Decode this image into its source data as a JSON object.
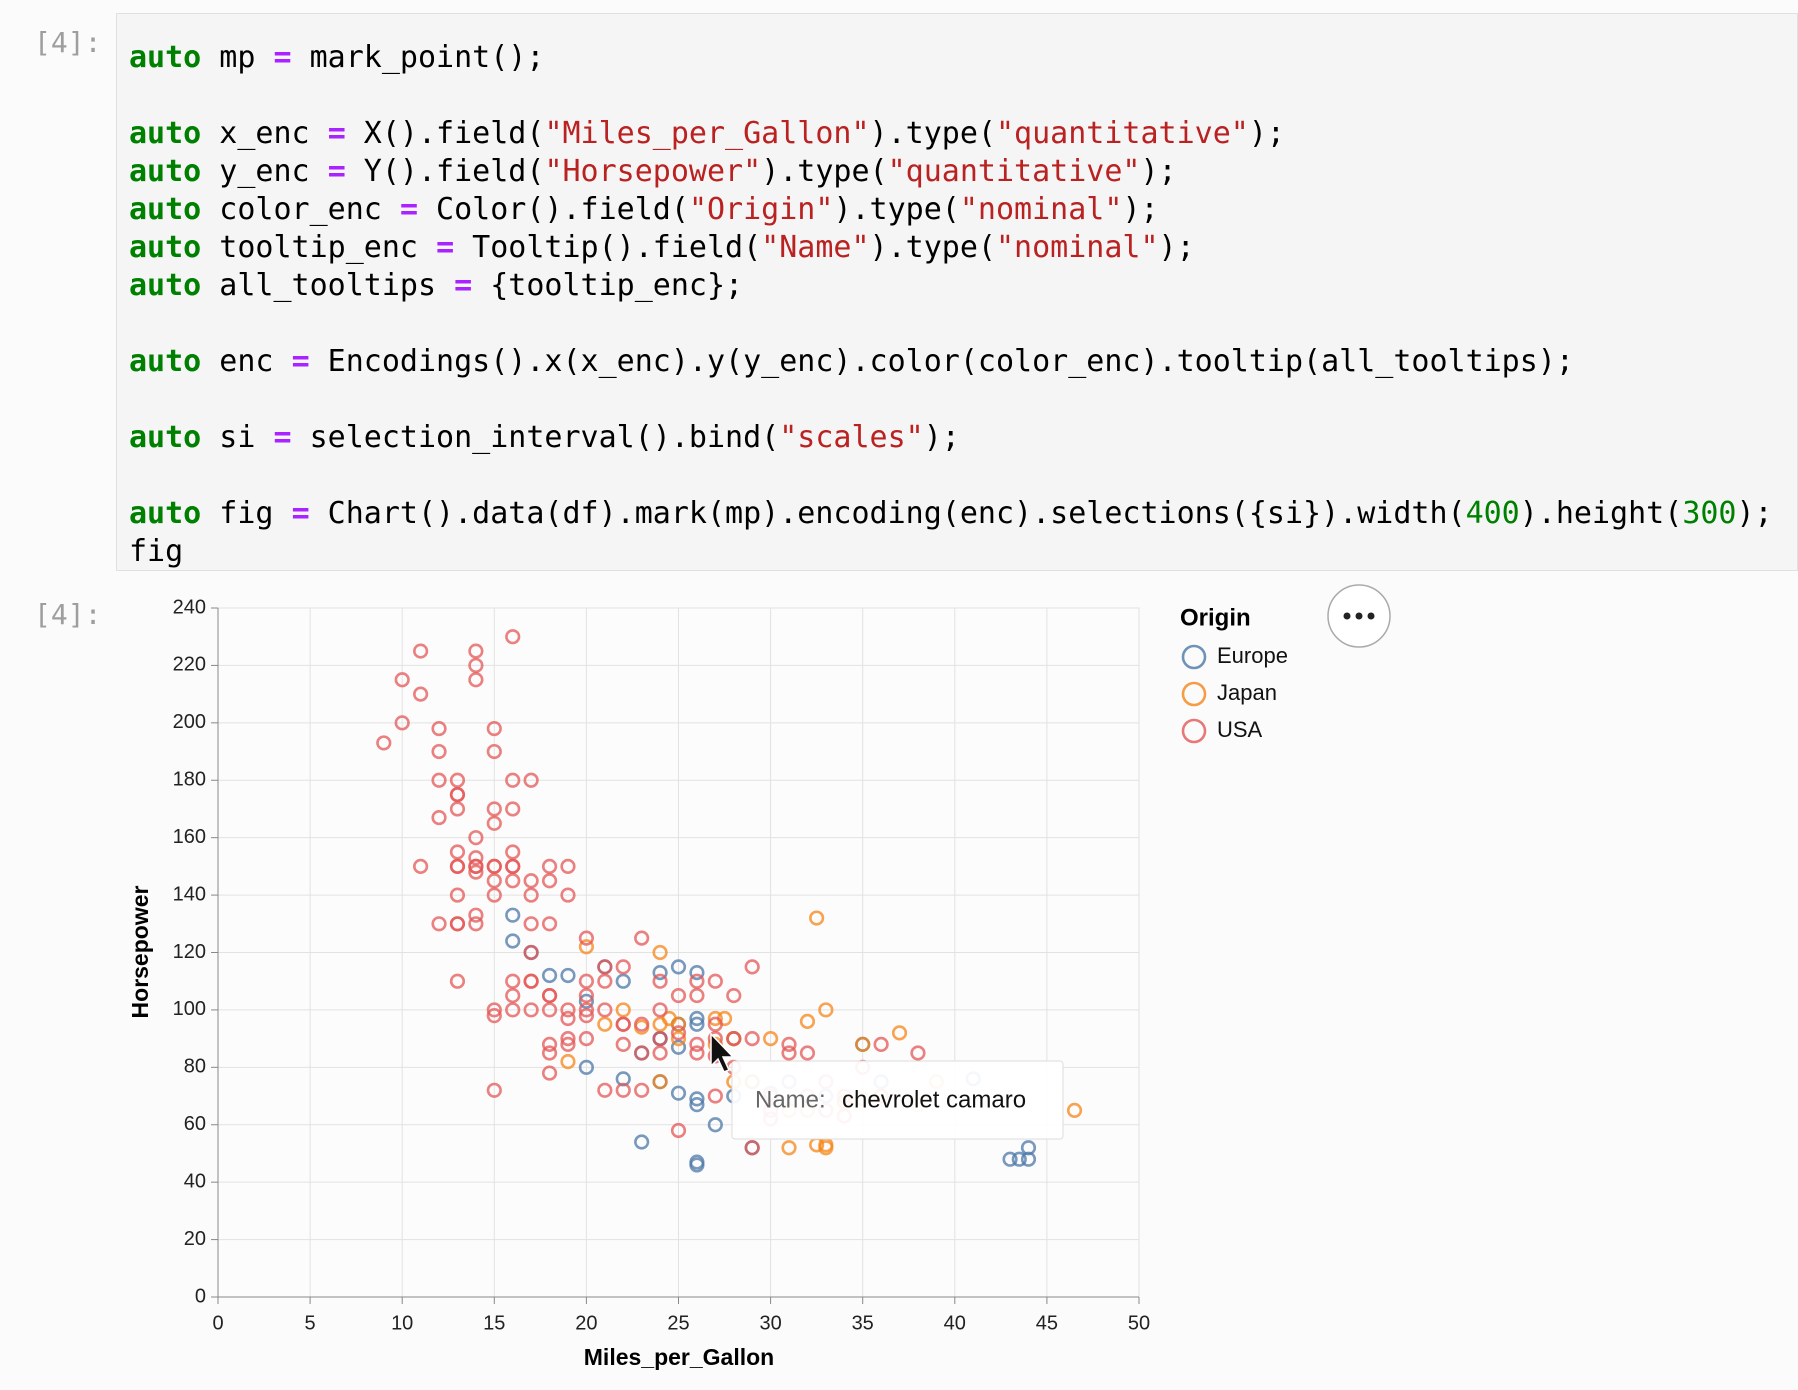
{
  "prompts": {
    "input": "[4]:",
    "output": "[4]:"
  },
  "code": {
    "lines": [
      [
        {
          "text": "auto",
          "color": "#008000",
          "bold": true
        },
        {
          "text": " mp "
        },
        {
          "text": "=",
          "color": "#aa22ff",
          "bold": true
        },
        {
          "text": " mark_point();"
        }
      ],
      [],
      [
        {
          "text": "auto",
          "color": "#008000",
          "bold": true
        },
        {
          "text": " x_enc "
        },
        {
          "text": "=",
          "color": "#aa22ff",
          "bold": true
        },
        {
          "text": " X().field("
        },
        {
          "text": "\"Miles_per_Gallon\"",
          "color": "#ba2121"
        },
        {
          "text": ").type("
        },
        {
          "text": "\"quantitative\"",
          "color": "#ba2121"
        },
        {
          "text": ");"
        }
      ],
      [
        {
          "text": "auto",
          "color": "#008000",
          "bold": true
        },
        {
          "text": " y_enc "
        },
        {
          "text": "=",
          "color": "#aa22ff",
          "bold": true
        },
        {
          "text": " Y().field("
        },
        {
          "text": "\"Horsepower\"",
          "color": "#ba2121"
        },
        {
          "text": ").type("
        },
        {
          "text": "\"quantitative\"",
          "color": "#ba2121"
        },
        {
          "text": ");"
        }
      ],
      [
        {
          "text": "auto",
          "color": "#008000",
          "bold": true
        },
        {
          "text": " color_enc "
        },
        {
          "text": "=",
          "color": "#aa22ff",
          "bold": true
        },
        {
          "text": " Color().field("
        },
        {
          "text": "\"Origin\"",
          "color": "#ba2121"
        },
        {
          "text": ").type("
        },
        {
          "text": "\"nominal\"",
          "color": "#ba2121"
        },
        {
          "text": ");"
        }
      ],
      [
        {
          "text": "auto",
          "color": "#008000",
          "bold": true
        },
        {
          "text": " tooltip_enc "
        },
        {
          "text": "=",
          "color": "#aa22ff",
          "bold": true
        },
        {
          "text": " Tooltip().field("
        },
        {
          "text": "\"Name\"",
          "color": "#ba2121"
        },
        {
          "text": ").type("
        },
        {
          "text": "\"nominal\"",
          "color": "#ba2121"
        },
        {
          "text": ");"
        }
      ],
      [
        {
          "text": "auto",
          "color": "#008000",
          "bold": true
        },
        {
          "text": " all_tooltips "
        },
        {
          "text": "=",
          "color": "#aa22ff",
          "bold": true
        },
        {
          "text": " {tooltip_enc};"
        }
      ],
      [],
      [
        {
          "text": "auto",
          "color": "#008000",
          "bold": true
        },
        {
          "text": " enc "
        },
        {
          "text": "=",
          "color": "#aa22ff",
          "bold": true
        },
        {
          "text": " Encodings().x(x_enc).y(y_enc).color(color_enc).tooltip(all_tooltips);"
        }
      ],
      [],
      [
        {
          "text": "auto",
          "color": "#008000",
          "bold": true
        },
        {
          "text": " si "
        },
        {
          "text": "=",
          "color": "#aa22ff",
          "bold": true
        },
        {
          "text": " selection_interval().bind("
        },
        {
          "text": "\"scales\"",
          "color": "#ba2121"
        },
        {
          "text": ");"
        }
      ],
      [],
      [
        {
          "text": "auto",
          "color": "#008000",
          "bold": true
        },
        {
          "text": " fig "
        },
        {
          "text": "=",
          "color": "#aa22ff",
          "bold": true
        },
        {
          "text": " Chart().data(df).mark(mp).encoding(enc).selections({si}).width("
        },
        {
          "text": "400",
          "color": "#008000"
        },
        {
          "text": ").height("
        },
        {
          "text": "300",
          "color": "#008000"
        },
        {
          "text": ");"
        }
      ],
      [
        {
          "text": "fig"
        }
      ]
    ]
  },
  "chart_data": {
    "type": "scatter",
    "x_label": "Miles_per_Gallon",
    "y_label": "Horsepower",
    "xlim": [
      0,
      50
    ],
    "ylim": [
      0,
      240
    ],
    "xticks": [
      0,
      5,
      10,
      15,
      20,
      25,
      30,
      35,
      40,
      45,
      50
    ],
    "yticks": [
      0,
      20,
      40,
      60,
      80,
      100,
      120,
      140,
      160,
      180,
      200,
      220,
      240
    ],
    "grid": true,
    "legend_title": "Origin",
    "legend_position": "right",
    "tooltip": {
      "label": "Name:",
      "value": "chevrolet camaro"
    },
    "series": [
      {
        "name": "Europe",
        "color": "#4c78a8",
        "x": [
          26,
          26,
          25,
          24,
          25,
          24,
          24,
          26,
          28,
          29,
          26,
          22,
          23,
          24,
          25,
          26,
          27,
          29,
          31,
          35,
          43,
          44,
          44,
          43.5,
          41,
          36,
          20,
          19,
          18,
          17,
          16,
          16,
          21,
          22,
          25,
          26,
          23,
          20,
          30,
          33,
          26,
          28
        ],
        "y": [
          46,
          47,
          87,
          90,
          95,
          113,
          90,
          95,
          90,
          52,
          97,
          76,
          54,
          75,
          71,
          67,
          60,
          75,
          75,
          88,
          48,
          48,
          52,
          48,
          76,
          75,
          103,
          112,
          112,
          120,
          124,
          133,
          115,
          110,
          115,
          113,
          85,
          80,
          71,
          70,
          69,
          70
        ]
      },
      {
        "name": "Japan",
        "color": "#f58518",
        "x": [
          24,
          27,
          27,
          25,
          31,
          35,
          32,
          33,
          32,
          32.5,
          37,
          39,
          46.5,
          31,
          33,
          32.5,
          27.5,
          28,
          30,
          34,
          36,
          38,
          35,
          24,
          23,
          22,
          20,
          19,
          21,
          24,
          25,
          28,
          29,
          33,
          34,
          24.5
        ],
        "y": [
          95,
          97,
          88,
          95,
          65,
          69,
          65,
          100,
          96,
          132,
          92,
          75,
          65,
          52,
          52,
          53,
          97,
          90,
          90,
          68,
          70,
          67,
          88,
          120,
          94,
          100,
          122,
          82,
          95,
          75,
          90,
          75,
          75,
          53,
          68,
          97
        ]
      },
      {
        "name": "USA",
        "color": "#e45756",
        "x": [
          18,
          15,
          18,
          16,
          17,
          15,
          14,
          14,
          14,
          15,
          15,
          14,
          15,
          16,
          22,
          18,
          21,
          10,
          10,
          11,
          9,
          13,
          13,
          12,
          13,
          14,
          13,
          12,
          13,
          16,
          19,
          18,
          17,
          19,
          18,
          16,
          15,
          16,
          17,
          20,
          20,
          21,
          13,
          14,
          15,
          14,
          12,
          13,
          13,
          11,
          12,
          16,
          17,
          16,
          11,
          14,
          15,
          15,
          13,
          22,
          18,
          21,
          20,
          17,
          18,
          19,
          22,
          23,
          16,
          17,
          13,
          16,
          17,
          14,
          12,
          13,
          15,
          18,
          19,
          24,
          26,
          25,
          27,
          29,
          30,
          28,
          31,
          33,
          36,
          35,
          38,
          32,
          27,
          34,
          25,
          24,
          26,
          29,
          28,
          27,
          23,
          23,
          20,
          20,
          19,
          17,
          18,
          19,
          16,
          15,
          14,
          26,
          24,
          23,
          22,
          30,
          30,
          29,
          25,
          27,
          34,
          33,
          36,
          20,
          21,
          22,
          24,
          26,
          27,
          28,
          31,
          32
        ],
        "y": [
          130,
          165,
          150,
          150,
          140,
          198,
          220,
          215,
          225,
          190,
          170,
          160,
          150,
          230,
          95,
          105,
          100,
          215,
          200,
          210,
          193,
          170,
          175,
          180,
          150,
          150,
          140,
          167,
          175,
          180,
          100,
          88,
          100,
          88,
          100,
          105,
          100,
          100,
          110,
          110,
          100,
          110,
          150,
          153,
          150,
          133,
          198,
          155,
          180,
          225,
          190,
          170,
          180,
          155,
          150,
          130,
          140,
          72,
          130,
          72,
          85,
          72,
          90,
          110,
          105,
          90,
          95,
          72,
          110,
          120,
          130,
          145,
          145,
          150,
          130,
          110,
          98,
          78,
          97,
          85,
          88,
          92,
          90,
          90,
          70,
          80,
          85,
          75,
          88,
          80,
          85,
          85,
          84,
          70,
          105,
          110,
          105,
          115,
          105,
          110,
          125,
          95,
          105,
          125,
          140,
          130,
          145,
          150,
          150,
          145,
          148,
          85,
          90,
          85,
          88,
          62,
          65,
          52,
          58,
          70,
          63,
          65,
          70,
          98,
          115,
          115,
          100,
          110,
          95,
          90,
          88,
          70
        ]
      }
    ]
  }
}
